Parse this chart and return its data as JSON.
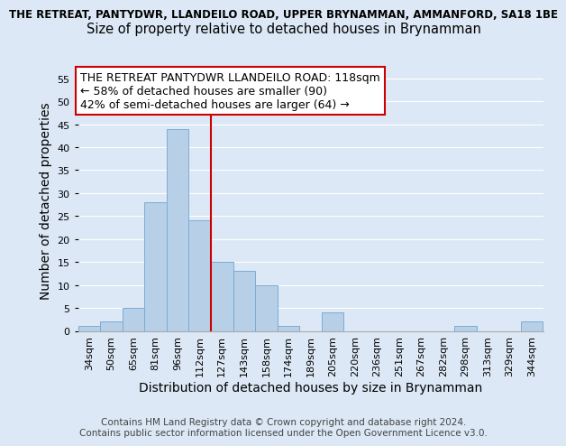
{
  "title_line1": "THE RETREAT, PANTYDWR, LLANDEILO ROAD, UPPER BRYNAMMAN, AMMANFORD, SA18 1BE",
  "title_line2": "Size of property relative to detached houses in Brynamman",
  "xlabel": "Distribution of detached houses by size in Brynamman",
  "ylabel": "Number of detached properties",
  "bar_labels": [
    "34sqm",
    "50sqm",
    "65sqm",
    "81sqm",
    "96sqm",
    "112sqm",
    "127sqm",
    "143sqm",
    "158sqm",
    "174sqm",
    "189sqm",
    "205sqm",
    "220sqm",
    "236sqm",
    "251sqm",
    "267sqm",
    "282sqm",
    "298sqm",
    "313sqm",
    "329sqm",
    "344sqm"
  ],
  "bar_heights": [
    1,
    2,
    5,
    28,
    44,
    24,
    15,
    13,
    10,
    1,
    0,
    4,
    0,
    0,
    0,
    0,
    0,
    1,
    0,
    0,
    2
  ],
  "bar_color": "#b8cfe8",
  "bar_edge_color": "#7aadd4",
  "vline_x": 5.5,
  "vline_color": "#cc0000",
  "annotation_title": "THE RETREAT PANTYDWR LLANDEILO ROAD: 118sqm",
  "annotation_line1": "← 58% of detached houses are smaller (90)",
  "annotation_line2": "42% of semi-detached houses are larger (64) →",
  "annotation_box_color": "#ffffff",
  "annotation_box_edge": "#cc0000",
  "ylim": [
    0,
    57
  ],
  "yticks": [
    0,
    5,
    10,
    15,
    20,
    25,
    30,
    35,
    40,
    45,
    50,
    55
  ],
  "background_color": "#dce8f5",
  "plot_bg_color": "#dce8f5",
  "footer_line1": "Contains HM Land Registry data © Crown copyright and database right 2024.",
  "footer_line2": "Contains public sector information licensed under the Open Government Licence v3.0.",
  "title_fontsize": 8.5,
  "subtitle_fontsize": 10.5,
  "axis_label_fontsize": 10,
  "tick_fontsize": 8,
  "annotation_fontsize": 9,
  "footer_fontsize": 7.5
}
